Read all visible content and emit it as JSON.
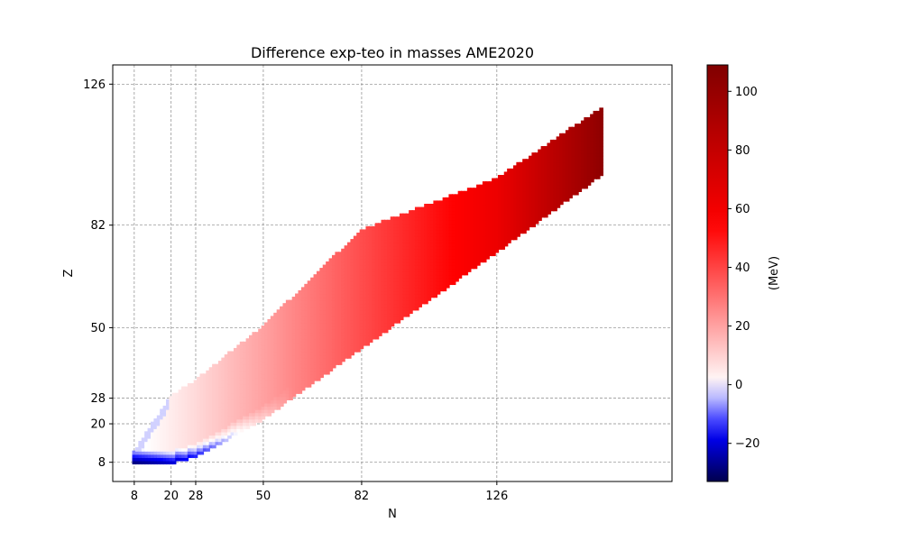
{
  "chart_data": {
    "type": "heatmap",
    "title": "Difference exp-teo in masses AME2020",
    "xlabel": "N",
    "ylabel": "Z",
    "xlim": [
      1,
      183
    ],
    "ylim": [
      2,
      132
    ],
    "x_ticks": [
      8,
      20,
      28,
      50,
      82,
      126
    ],
    "y_ticks": [
      8,
      20,
      28,
      50,
      82,
      126
    ],
    "grid": true,
    "colorbar": {
      "label": "(MeV)",
      "range": [
        -33,
        109
      ],
      "ticks": [
        -20,
        0,
        20,
        40,
        60,
        80,
        100
      ],
      "colormap": "seismic",
      "colors": [
        "#00004d",
        "#0000ff",
        "#ffffff",
        "#ff0000",
        "#800000"
      ]
    },
    "band": {
      "description": "Nuclide chart colored by experimental minus theoretical mass difference",
      "z_range_by_n": [
        {
          "n": 8,
          "z_min": 8,
          "z_max": 11
        },
        {
          "n": 20,
          "z_min": 8,
          "z_max": 28
        },
        {
          "n": 28,
          "z_min": 10,
          "z_max": 33
        },
        {
          "n": 50,
          "z_min": 22,
          "z_max": 50
        },
        {
          "n": 82,
          "z_min": 44,
          "z_max": 80
        },
        {
          "n": 126,
          "z_min": 74,
          "z_max": 96
        },
        {
          "n": 160,
          "z_min": 98,
          "z_max": 118
        }
      ],
      "value_along_band": [
        {
          "n": 8,
          "value": -2
        },
        {
          "n": 28,
          "value": 8
        },
        {
          "n": 50,
          "value": 20
        },
        {
          "n": 82,
          "value": 38
        },
        {
          "n": 126,
          "value": 62
        },
        {
          "n": 160,
          "value": 102
        }
      ],
      "lower_edge_value": -28
    }
  }
}
